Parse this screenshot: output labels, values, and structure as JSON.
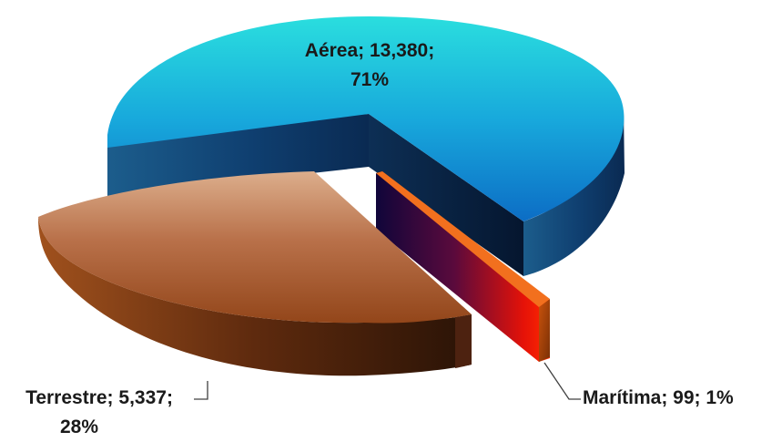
{
  "chart_data": {
    "type": "pie",
    "style": "3d-exploded",
    "legend": "none",
    "slices": [
      {
        "name": "Aérea",
        "value": 13380,
        "value_label": "13,380",
        "percent_label": "71%",
        "colors": {
          "top_light": "#27d6d9",
          "top_dark": "#0f75c7",
          "side_light": "#1a5a8a",
          "side_dark": "#0c2b55"
        }
      },
      {
        "name": "Terrestre",
        "value": 5337,
        "value_label": "5,337",
        "percent_label": "28%",
        "colors": {
          "top_light": "#d6a27e",
          "top_dark": "#9c4e1e",
          "side_light": "#7a3410",
          "side_dark": "#2a1206"
        }
      },
      {
        "name": "Marítima",
        "value": 99,
        "value_label": "99",
        "percent_label": "1%",
        "colors": {
          "top_light": "#ff6a1a",
          "top_dark": "#e15a10",
          "side_light": "#ff1a00",
          "side_dark": "#120636"
        }
      }
    ],
    "labels": {
      "aerea_line1": "Aérea; 13,380;",
      "aerea_line2": "71%",
      "terrestre_line1": "Terrestre; 5,337;",
      "terrestre_line2": "28%",
      "maritima_line1": "Marítima; 99; 1%"
    }
  }
}
